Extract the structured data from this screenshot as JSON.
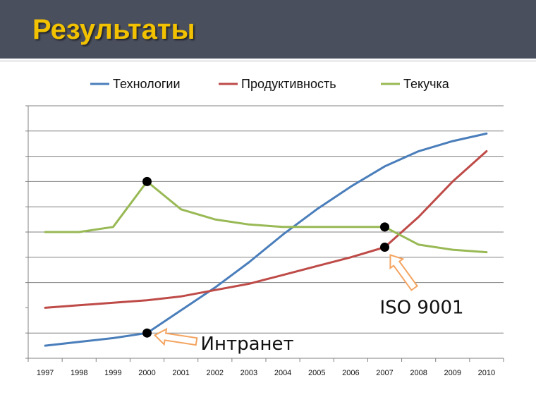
{
  "slide": {
    "title": "Результаты"
  },
  "chart_data": {
    "type": "line",
    "title": "",
    "xlabel": "",
    "ylabel": "",
    "categories": [
      "1997",
      "1998",
      "1999",
      "2000",
      "2001",
      "2002",
      "2003",
      "2004",
      "2005",
      "2006",
      "2007",
      "2008",
      "2009",
      "2010"
    ],
    "ylim": [
      0,
      10
    ],
    "grid": true,
    "y_tick_labels_shown": false,
    "legend": "top",
    "series": [
      {
        "name": "Технологии",
        "color": "#4a7ebb",
        "values": [
          0.5,
          0.65,
          0.8,
          1.0,
          1.9,
          2.8,
          3.8,
          4.9,
          5.9,
          6.8,
          7.6,
          8.2,
          8.6,
          8.9
        ]
      },
      {
        "name": "Продуктивность",
        "color": "#be4b48",
        "values": [
          2.0,
          2.1,
          2.2,
          2.3,
          2.45,
          2.7,
          2.95,
          3.3,
          3.65,
          4.0,
          4.4,
          5.6,
          7.0,
          8.2
        ]
      },
      {
        "name": "Текучка",
        "color": "#98b954",
        "values": [
          5.0,
          5.0,
          5.2,
          7.0,
          5.9,
          5.5,
          5.3,
          5.2,
          5.2,
          5.2,
          5.2,
          4.5,
          4.3,
          4.2
        ]
      }
    ],
    "markers": [
      {
        "series": 2,
        "index": 3
      },
      {
        "series": 0,
        "index": 3
      },
      {
        "series": 2,
        "index": 10
      },
      {
        "series": 1,
        "index": 10
      }
    ],
    "annotations": [
      {
        "text": "Интранет",
        "series": 0,
        "index": 3,
        "arrow_color": "#f4a460"
      },
      {
        "text": "ISO 9001",
        "series": 1,
        "index": 10,
        "arrow_color": "#f4a460"
      }
    ],
    "axis_color": "#808080",
    "grid_color": "#808080",
    "marker_color": "#000000"
  }
}
